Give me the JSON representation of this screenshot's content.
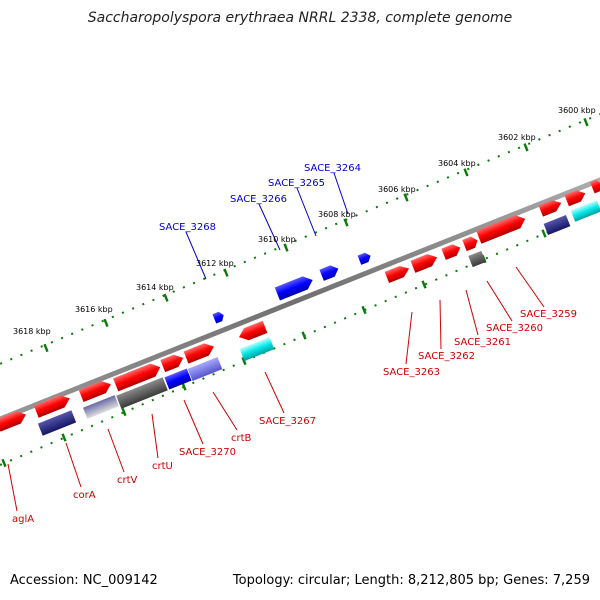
{
  "title": "Saccharopolyspora erythraea NRRL 2338, complete genome",
  "footer": {
    "accession": "Accession: NC_009142",
    "topology": "Topology: circular; Length: 8,212,805 bp; Genes: 7,259"
  },
  "colors": {
    "backbone": "#808080",
    "tick": "#0a7a0a",
    "forward_gene": "#ff0000",
    "reverse_gene": "#ff0000",
    "forward_highlight": "#0000ff",
    "reverse_highlight": "#00e0e0",
    "label_forward": "#0000cc",
    "label_reverse": "#cc0000"
  },
  "kbp_labels": [
    "3600 kbp",
    "3602 kbp",
    "3604 kbp",
    "3606 kbp",
    "3608 kbp",
    "3610 kbp",
    "3612 kbp",
    "3614 kbp",
    "3616 kbp",
    "3618 kbp"
  ],
  "forward_labels": [
    "SACE_3264",
    "SACE_3265",
    "SACE_3266",
    "SACE_3268"
  ],
  "reverse_labels": [
    "SACE_3259",
    "SACE_3260",
    "SACE_3261",
    "SACE_3262",
    "SACE_3263",
    "SACE_3267",
    "SACE_3270",
    "crtB",
    "crtU",
    "crtV",
    "corA",
    "aglA"
  ]
}
